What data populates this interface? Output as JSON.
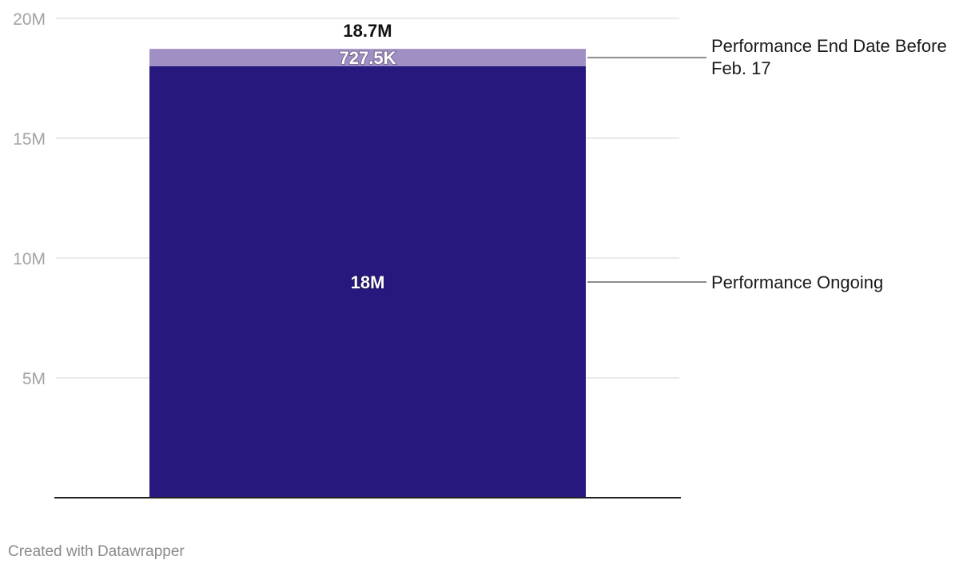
{
  "chart_data": {
    "type": "bar",
    "stacked": true,
    "categories": [
      ""
    ],
    "series": [
      {
        "name": "Performance Ongoing",
        "values": [
          18000000
        ],
        "value_label": "18M",
        "color": "#27187e"
      },
      {
        "name_lines": [
          "Performance End Date Before",
          "Feb. 17"
        ],
        "values": [
          727500
        ],
        "value_label": "727.5K",
        "color": "#a08fc4"
      }
    ],
    "total_labels": [
      "18.7M"
    ],
    "ylim": [
      0,
      20000000
    ],
    "yticks": [
      {
        "value": 5000000,
        "label": "5M"
      },
      {
        "value": 10000000,
        "label": "10M"
      },
      {
        "value": 15000000,
        "label": "15M"
      },
      {
        "value": 20000000,
        "label": "20M"
      }
    ],
    "grid": true,
    "legend": "direct labels right"
  },
  "footer": {
    "credit": "Created with Datawrapper"
  }
}
